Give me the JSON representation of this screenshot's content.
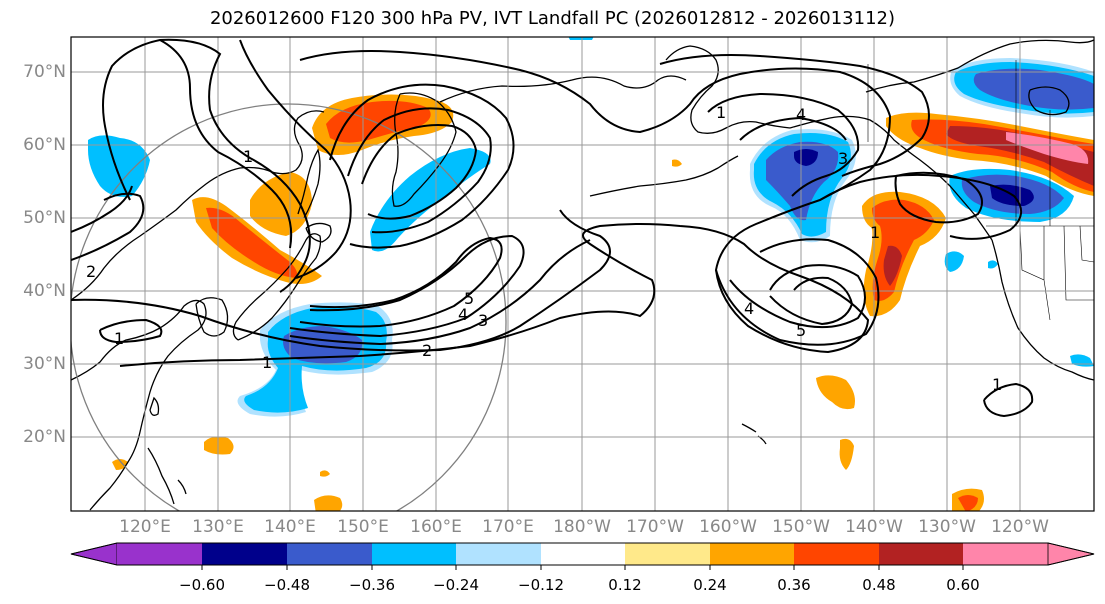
{
  "title": "2026012600 F120 300 hPa PV, IVT Landfall PC (2026012812 - 2026013112)",
  "map": {
    "lat_labels": [
      "70°N",
      "60°N",
      "50°N",
      "40°N",
      "30°N",
      "20°N"
    ],
    "lon_labels": [
      "120°E",
      "130°E",
      "140°E",
      "150°E",
      "160°E",
      "170°E",
      "180°W",
      "170°W",
      "160°W",
      "150°W",
      "140°W",
      "130°W",
      "120°W"
    ],
    "contour_labels": [
      "1",
      "2",
      "3",
      "4",
      "5",
      "4",
      "3",
      "5",
      "4",
      "1",
      "1",
      "2",
      "1",
      "1",
      "1"
    ]
  },
  "colorbar": {
    "ticks": [
      "−0.60",
      "−0.48",
      "−0.36",
      "−0.24",
      "−0.12",
      "0.12",
      "0.24",
      "0.36",
      "0.48",
      "0.60"
    ],
    "colors": [
      "#9932cc",
      "#00008b",
      "#3a5bcc",
      "#00bfff",
      "#b0e2ff",
      "#ffffff",
      "#ffe98a",
      "#ffa500",
      "#ff4500",
      "#b22222",
      "#ff85aa"
    ]
  },
  "colors": {
    "grid": "#999999",
    "contour": "#000000",
    "circle": "#808080"
  }
}
